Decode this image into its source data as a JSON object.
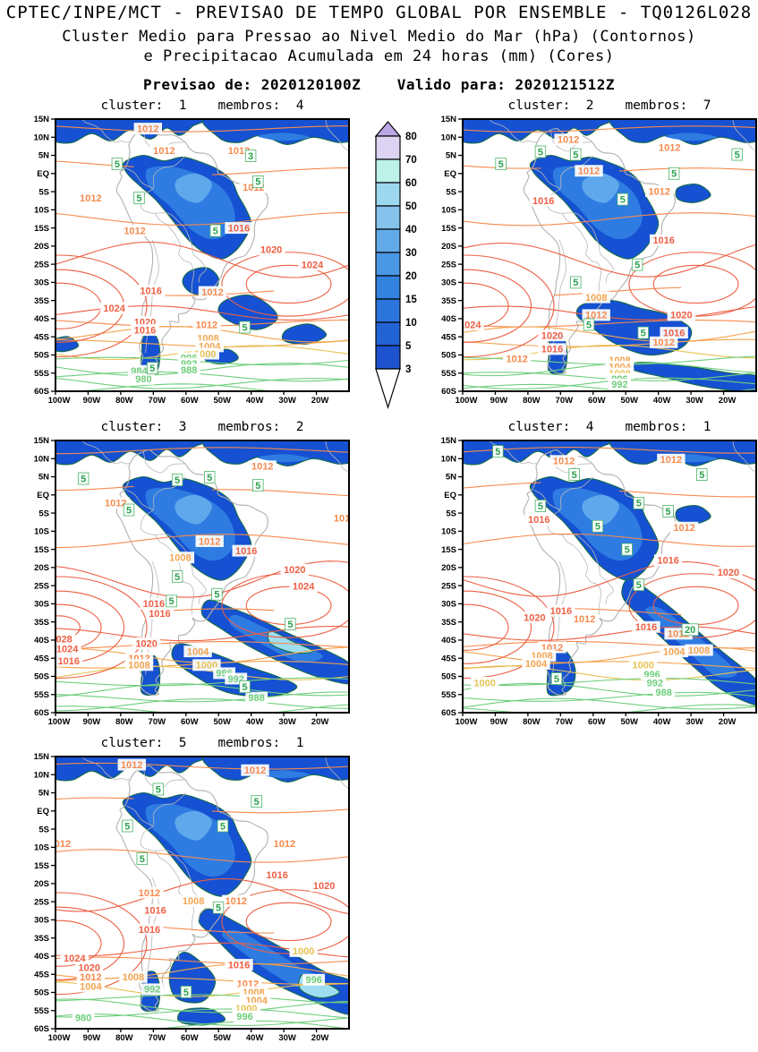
{
  "header": {
    "title": "CPTEC/INPE/MCT - PREVISAO DE TEMPO GLOBAL POR ENSEMBLE - TQ0126L028",
    "subtitle1": "Cluster Medio para Pressao ao Nivel Medio do Mar (hPa) (Contornos)",
    "subtitle2": "e Precipitacao Acumulada em 24 horas (mm) (Cores)",
    "forecast_line": "Previsao de: 2020120100Z    Valido para: 2020121512Z",
    "issued_label": "Previsao de:",
    "issued_time": "2020120100Z",
    "valid_label": "Valido para:",
    "valid_time": "2020121512Z"
  },
  "axes": {
    "lat_labels": [
      "15N",
      "10N",
      "5N",
      "EQ",
      "5S",
      "10S",
      "15S",
      "20S",
      "25S",
      "30S",
      "35S",
      "40S",
      "45S",
      "50S",
      "55S",
      "60S"
    ],
    "lon_labels": [
      "100W",
      "90W",
      "80W",
      "70W",
      "60W",
      "50W",
      "40W",
      "30W",
      "20W"
    ]
  },
  "chart_data": {
    "type": "heatmap",
    "title": "Cluster Medio para Pressao ao Nivel Medio do Mar (hPa) (Contornos) e Precipitacao Acumulada em 24 horas (mm) (Cores)",
    "contour_variable": "Pressao ao Nivel Medio do Mar (hPa)",
    "shaded_variable": "Precipitacao Acumulada em 24 horas (mm)",
    "pressure_contour_interval_hPa": 4,
    "region": {
      "lon_range": [
        "100W",
        "10W"
      ],
      "lat_range": [
        "15N",
        "60S"
      ]
    },
    "colorbar": {
      "units": "mm",
      "levels": [
        "80",
        "70",
        "60",
        "50",
        "40",
        "30",
        "20",
        "15",
        "10",
        "5",
        "3"
      ],
      "band_colors": [
        "#dcd4f2",
        "#bdf2e9",
        "#9ed7f0",
        "#85c2ec",
        "#62aae8",
        "#4a98e4",
        "#3482e0",
        "#2a74dc",
        "#2263d6",
        "#1d53cf"
      ],
      "above_color": "#baa7e6",
      "below_color": "#ffffff"
    },
    "panels": [
      {
        "title": "cluster:  1    membros:  4",
        "cluster": "1",
        "membros": "4",
        "pressure_labels": [
          {
            "v": "1012",
            "x": 0.315,
            "y": 0.035
          },
          {
            "v": "1012",
            "x": 0.37,
            "y": 0.115
          },
          {
            "v": "1012",
            "x": 0.625,
            "y": 0.115
          },
          {
            "v": "1012",
            "x": 0.12,
            "y": 0.29
          },
          {
            "v": "1012",
            "x": 0.675,
            "y": 0.25
          },
          {
            "v": "1012",
            "x": 0.27,
            "y": 0.41
          },
          {
            "v": "1016",
            "x": 0.625,
            "y": 0.4
          },
          {
            "v": "1020",
            "x": 0.735,
            "y": 0.48
          },
          {
            "v": "1024",
            "x": 0.875,
            "y": 0.535
          },
          {
            "v": "1024",
            "x": 0.2,
            "y": 0.695
          },
          {
            "v": "1016",
            "x": 0.325,
            "y": 0.63
          },
          {
            "v": "1020",
            "x": 0.305,
            "y": 0.745
          },
          {
            "v": "1016",
            "x": 0.305,
            "y": 0.775
          },
          {
            "v": "1012",
            "x": 0.535,
            "y": 0.635
          },
          {
            "v": "1012",
            "x": 0.515,
            "y": 0.755
          },
          {
            "v": "1008",
            "x": 0.52,
            "y": 0.805
          },
          {
            "v": "1004",
            "x": 0.525,
            "y": 0.835
          },
          {
            "v": "1000",
            "x": 0.51,
            "y": 0.862
          },
          {
            "v": "996",
            "x": 0.455,
            "y": 0.878
          },
          {
            "v": "992",
            "x": 0.455,
            "y": 0.898
          },
          {
            "v": "988",
            "x": 0.455,
            "y": 0.922
          },
          {
            "v": "984",
            "x": 0.285,
            "y": 0.925
          },
          {
            "v": "980",
            "x": 0.3,
            "y": 0.955
          }
        ],
        "precip_labels": [
          {
            "v": "5",
            "x": 0.21,
            "y": 0.165
          },
          {
            "v": "5",
            "x": 0.285,
            "y": 0.29
          },
          {
            "v": "5",
            "x": 0.545,
            "y": 0.41
          },
          {
            "v": "3",
            "x": 0.665,
            "y": 0.135
          },
          {
            "v": "5",
            "x": 0.69,
            "y": 0.23
          },
          {
            "v": "5",
            "x": 0.645,
            "y": 0.765
          },
          {
            "v": "5",
            "x": 0.33,
            "y": 0.915
          }
        ]
      },
      {
        "title": "cluster:  2    membros:  7",
        "cluster": "2",
        "membros": "7",
        "pressure_labels": [
          {
            "v": "1012",
            "x": 0.36,
            "y": 0.075
          },
          {
            "v": "1012",
            "x": 0.705,
            "y": 0.105
          },
          {
            "v": "1012",
            "x": 0.43,
            "y": 0.19
          },
          {
            "v": "1016",
            "x": 0.275,
            "y": 0.3
          },
          {
            "v": "1012",
            "x": 0.67,
            "y": 0.265
          },
          {
            "v": "1016",
            "x": 0.685,
            "y": 0.445
          },
          {
            "v": "1008",
            "x": 0.455,
            "y": 0.655
          },
          {
            "v": "1012",
            "x": 0.455,
            "y": 0.72
          },
          {
            "v": "1020",
            "x": 0.745,
            "y": 0.72
          },
          {
            "v": "1016",
            "x": 0.72,
            "y": 0.785
          },
          {
            "v": "1012",
            "x": 0.685,
            "y": 0.82
          },
          {
            "v": "1024",
            "x": 0.025,
            "y": 0.755
          },
          {
            "v": "1020",
            "x": 0.305,
            "y": 0.795
          },
          {
            "v": "1016",
            "x": 0.305,
            "y": 0.845
          },
          {
            "v": "1012",
            "x": 0.185,
            "y": 0.88
          },
          {
            "v": "1008",
            "x": 0.535,
            "y": 0.885
          },
          {
            "v": "1004",
            "x": 0.535,
            "y": 0.91
          },
          {
            "v": "1000",
            "x": 0.535,
            "y": 0.935
          },
          {
            "v": "996",
            "x": 0.535,
            "y": 0.955
          },
          {
            "v": "992",
            "x": 0.535,
            "y": 0.975
          }
        ],
        "precip_labels": [
          {
            "v": "5",
            "x": 0.265,
            "y": 0.12
          },
          {
            "v": "5",
            "x": 0.385,
            "y": 0.13
          },
          {
            "v": "5",
            "x": 0.935,
            "y": 0.13
          },
          {
            "v": "5",
            "x": 0.13,
            "y": 0.165
          },
          {
            "v": "5",
            "x": 0.72,
            "y": 0.2
          },
          {
            "v": "5",
            "x": 0.545,
            "y": 0.295
          },
          {
            "v": "5",
            "x": 0.595,
            "y": 0.535
          },
          {
            "v": "5",
            "x": 0.385,
            "y": 0.6
          },
          {
            "v": "5",
            "x": 0.43,
            "y": 0.755
          },
          {
            "v": "5",
            "x": 0.615,
            "y": 0.785
          }
        ]
      },
      {
        "title": "cluster:  3    membros:  2",
        "cluster": "3",
        "membros": "2",
        "pressure_labels": [
          {
            "v": "1012",
            "x": 0.705,
            "y": 0.095
          },
          {
            "v": "1012",
            "x": 0.205,
            "y": 0.23
          },
          {
            "v": "1012",
            "x": 0.985,
            "y": 0.285
          },
          {
            "v": "1012",
            "x": 0.525,
            "y": 0.37
          },
          {
            "v": "1016",
            "x": 0.65,
            "y": 0.405
          },
          {
            "v": "1008",
            "x": 0.425,
            "y": 0.43
          },
          {
            "v": "1020",
            "x": 0.815,
            "y": 0.475
          },
          {
            "v": "1024",
            "x": 0.845,
            "y": 0.535
          },
          {
            "v": "1016",
            "x": 0.335,
            "y": 0.6
          },
          {
            "v": "1016",
            "x": 0.355,
            "y": 0.635
          },
          {
            "v": "1028",
            "x": 0.02,
            "y": 0.73
          },
          {
            "v": "1024",
            "x": 0.04,
            "y": 0.765
          },
          {
            "v": "1016",
            "x": 0.045,
            "y": 0.81
          },
          {
            "v": "1020",
            "x": 0.31,
            "y": 0.745
          },
          {
            "v": "1012",
            "x": 0.285,
            "y": 0.8
          },
          {
            "v": "1008",
            "x": 0.285,
            "y": 0.825
          },
          {
            "v": "1004",
            "x": 0.485,
            "y": 0.775
          },
          {
            "v": "1000",
            "x": 0.515,
            "y": 0.825
          },
          {
            "v": "996",
            "x": 0.575,
            "y": 0.855
          },
          {
            "v": "992",
            "x": 0.615,
            "y": 0.875
          },
          {
            "v": "988",
            "x": 0.685,
            "y": 0.945
          }
        ],
        "precip_labels": [
          {
            "v": "5",
            "x": 0.095,
            "y": 0.14
          },
          {
            "v": "5",
            "x": 0.415,
            "y": 0.145
          },
          {
            "v": "5",
            "x": 0.525,
            "y": 0.135
          },
          {
            "v": "5",
            "x": 0.69,
            "y": 0.165
          },
          {
            "v": "5",
            "x": 0.25,
            "y": 0.255
          },
          {
            "v": "5",
            "x": 0.415,
            "y": 0.5
          },
          {
            "v": "5",
            "x": 0.395,
            "y": 0.59
          },
          {
            "v": "5",
            "x": 0.55,
            "y": 0.565
          },
          {
            "v": "5",
            "x": 0.8,
            "y": 0.675
          },
          {
            "v": "5",
            "x": 0.645,
            "y": 0.905
          }
        ]
      },
      {
        "title": "cluster:  4    membros:  1",
        "cluster": "4",
        "membros": "1",
        "pressure_labels": [
          {
            "v": "1012",
            "x": 0.345,
            "y": 0.075
          },
          {
            "v": "1012",
            "x": 0.71,
            "y": 0.07
          },
          {
            "v": "1016",
            "x": 0.26,
            "y": 0.29
          },
          {
            "v": "1012",
            "x": 0.755,
            "y": 0.32
          },
          {
            "v": "1016",
            "x": 0.7,
            "y": 0.44
          },
          {
            "v": "1020",
            "x": 0.905,
            "y": 0.485
          },
          {
            "v": "1016",
            "x": 0.335,
            "y": 0.625
          },
          {
            "v": "1012",
            "x": 0.415,
            "y": 0.655
          },
          {
            "v": "1020",
            "x": 0.245,
            "y": 0.65
          },
          {
            "v": "1016",
            "x": 0.625,
            "y": 0.685
          },
          {
            "v": "1012",
            "x": 0.735,
            "y": 0.71
          },
          {
            "v": "1012",
            "x": 0.305,
            "y": 0.76
          },
          {
            "v": "1008",
            "x": 0.27,
            "y": 0.79
          },
          {
            "v": "1004",
            "x": 0.25,
            "y": 0.82
          },
          {
            "v": "1008",
            "x": 0.805,
            "y": 0.77
          },
          {
            "v": "1004",
            "x": 0.72,
            "y": 0.775
          },
          {
            "v": "1000",
            "x": 0.615,
            "y": 0.825
          },
          {
            "v": "996",
            "x": 0.645,
            "y": 0.86
          },
          {
            "v": "992",
            "x": 0.655,
            "y": 0.89
          },
          {
            "v": "988",
            "x": 0.685,
            "y": 0.925
          },
          {
            "v": "1000",
            "x": 0.075,
            "y": 0.89
          }
        ],
        "precip_labels": [
          {
            "v": "5",
            "x": 0.12,
            "y": 0.04
          },
          {
            "v": "5",
            "x": 0.38,
            "y": 0.125
          },
          {
            "v": "5",
            "x": 0.265,
            "y": 0.24
          },
          {
            "v": "5",
            "x": 0.46,
            "y": 0.315
          },
          {
            "v": "5",
            "x": 0.6,
            "y": 0.23
          },
          {
            "v": "5",
            "x": 0.7,
            "y": 0.26
          },
          {
            "v": "5",
            "x": 0.56,
            "y": 0.4
          },
          {
            "v": "5",
            "x": 0.6,
            "y": 0.53
          },
          {
            "v": "5",
            "x": 0.815,
            "y": 0.125
          },
          {
            "v": "20",
            "x": 0.775,
            "y": 0.695
          },
          {
            "v": "5",
            "x": 0.32,
            "y": 0.875
          }
        ]
      },
      {
        "title": "cluster:  5    membros:  1",
        "cluster": "5",
        "membros": "1",
        "pressure_labels": [
          {
            "v": "1012",
            "x": 0.26,
            "y": 0.03
          },
          {
            "v": "1012",
            "x": 0.68,
            "y": 0.05
          },
          {
            "v": "1012",
            "x": 0.015,
            "y": 0.32
          },
          {
            "v": "1012",
            "x": 0.78,
            "y": 0.32
          },
          {
            "v": "1016",
            "x": 0.755,
            "y": 0.435
          },
          {
            "v": "1020",
            "x": 0.915,
            "y": 0.475
          },
          {
            "v": "1012",
            "x": 0.32,
            "y": 0.5
          },
          {
            "v": "1008",
            "x": 0.47,
            "y": 0.53
          },
          {
            "v": "1012",
            "x": 0.615,
            "y": 0.53
          },
          {
            "v": "1016",
            "x": 0.34,
            "y": 0.565
          },
          {
            "v": "1016",
            "x": 0.32,
            "y": 0.635
          },
          {
            "v": "1024",
            "x": 0.065,
            "y": 0.74
          },
          {
            "v": "1020",
            "x": 0.115,
            "y": 0.775
          },
          {
            "v": "1012",
            "x": 0.12,
            "y": 0.81
          },
          {
            "v": "1004",
            "x": 0.12,
            "y": 0.845
          },
          {
            "v": "1008",
            "x": 0.265,
            "y": 0.81
          },
          {
            "v": "992",
            "x": 0.33,
            "y": 0.855
          },
          {
            "v": "1000",
            "x": 0.845,
            "y": 0.715
          },
          {
            "v": "996",
            "x": 0.88,
            "y": 0.82
          },
          {
            "v": "1016",
            "x": 0.625,
            "y": 0.765
          },
          {
            "v": "1012",
            "x": 0.655,
            "y": 0.835
          },
          {
            "v": "1008",
            "x": 0.675,
            "y": 0.865
          },
          {
            "v": "1004",
            "x": 0.685,
            "y": 0.895
          },
          {
            "v": "1000",
            "x": 0.65,
            "y": 0.925
          },
          {
            "v": "996",
            "x": 0.645,
            "y": 0.955
          },
          {
            "v": "980",
            "x": 0.095,
            "y": 0.96
          }
        ],
        "precip_labels": [
          {
            "v": "5",
            "x": 0.35,
            "y": 0.12
          },
          {
            "v": "5",
            "x": 0.685,
            "y": 0.165
          },
          {
            "v": "5",
            "x": 0.245,
            "y": 0.255
          },
          {
            "v": "5",
            "x": 0.295,
            "y": 0.375
          },
          {
            "v": "5",
            "x": 0.57,
            "y": 0.255
          },
          {
            "v": "5",
            "x": 0.555,
            "y": 0.555
          },
          {
            "v": "5",
            "x": 0.445,
            "y": 0.865
          }
        ]
      }
    ]
  }
}
